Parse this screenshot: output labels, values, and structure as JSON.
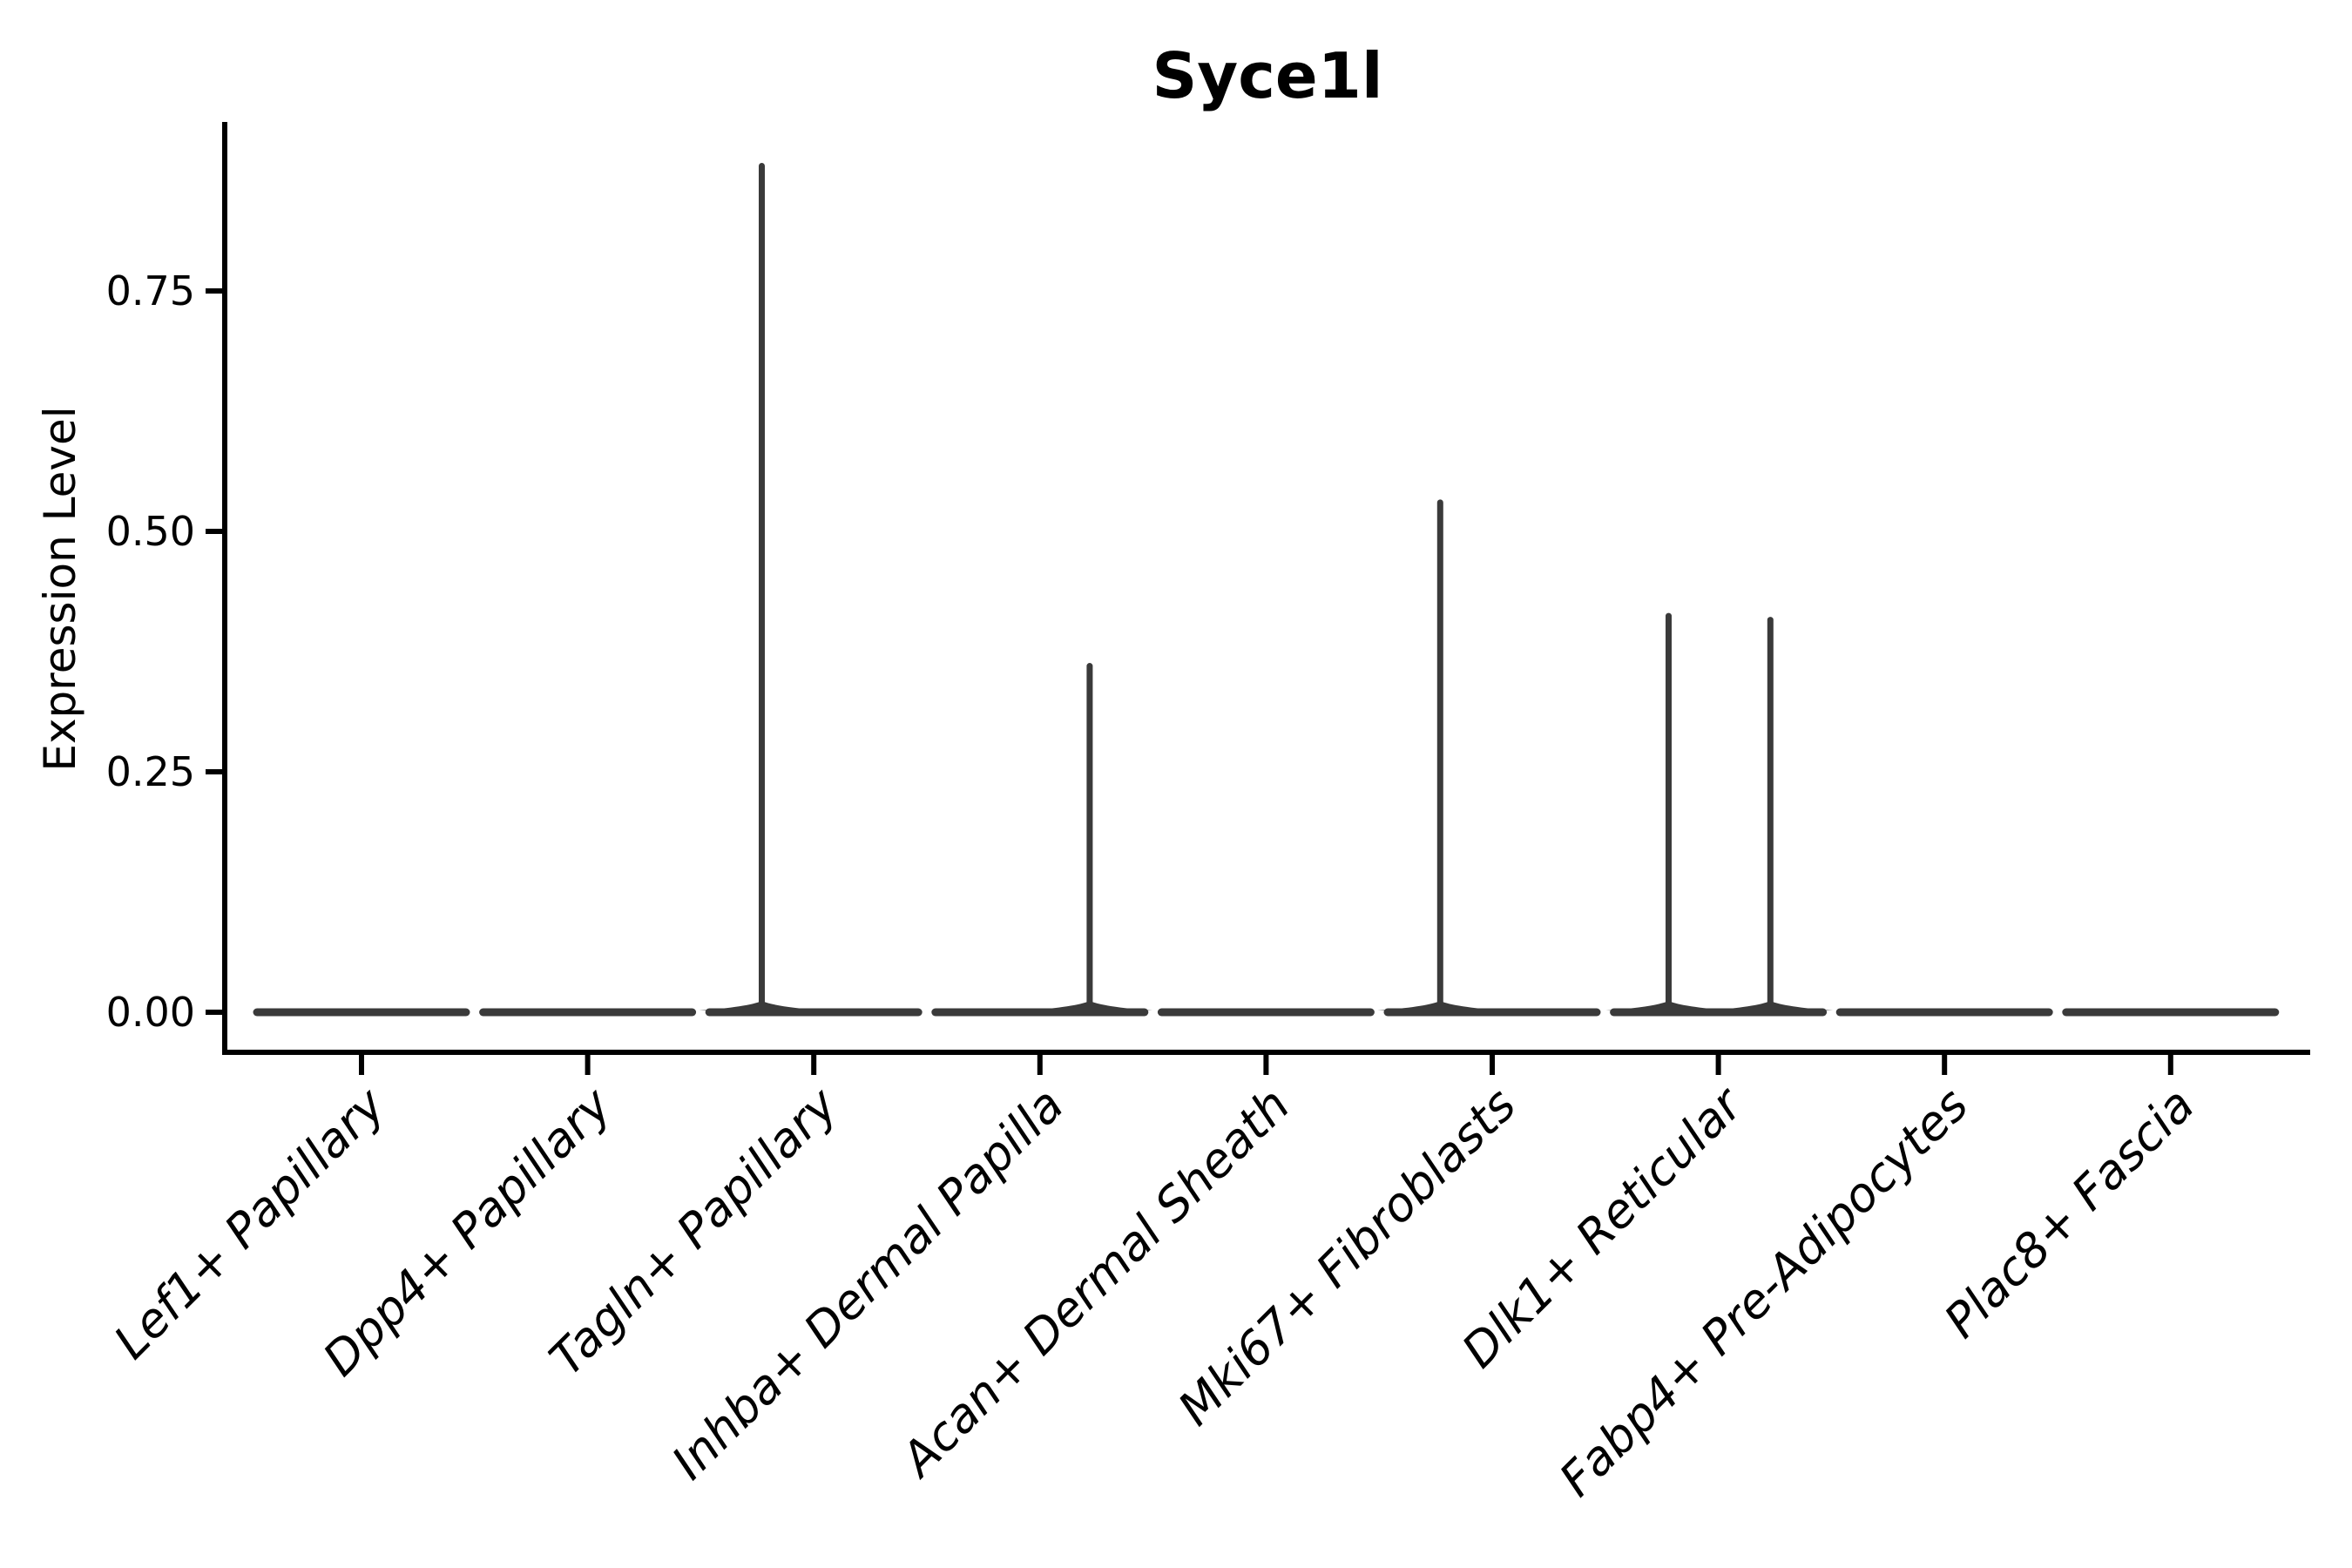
{
  "figure": {
    "title": "Syce1l",
    "ylabel": "Expression Level"
  },
  "chart_data": {
    "type": "violin",
    "title": "Syce1l",
    "xlabel": "",
    "ylabel": "Expression Level",
    "grid": false,
    "legend": false,
    "background": "#ffffff",
    "categories": [
      "Lef1+ Papillary",
      "Dpp4+ Papillary",
      "Tagln+ Papillary",
      "Inhba+ Dermal Papilla",
      "Acan+ Dermal Sheath",
      "Mki67+ Fibroblasts",
      "Dlk1+ Reticular",
      "Fabp4+ Pre-Adipocytes",
      "Plac8+ Fascia"
    ],
    "y_ticks": [
      "0.00",
      "0.25",
      "0.50",
      "0.75"
    ],
    "y_tick_values": [
      0,
      0.25,
      0.5,
      0.75
    ],
    "ylim": [
      0,
      0.93
    ],
    "violins": [
      {
        "category": "Lef1+ Papillary",
        "all_zero": true,
        "max": 0,
        "spikes": []
      },
      {
        "category": "Dpp4+ Papillary",
        "all_zero": true,
        "max": 0,
        "spikes": []
      },
      {
        "category": "Tagln+ Papillary",
        "all_zero": false,
        "max": 0.88,
        "spikes": [
          {
            "x_offset": -0.23,
            "value": 0.88
          }
        ]
      },
      {
        "category": "Inhba+ Dermal Papilla",
        "all_zero": false,
        "max": 0.36,
        "spikes": [
          {
            "x_offset": 0.22,
            "value": 0.36
          }
        ]
      },
      {
        "category": "Acan+ Dermal Sheath",
        "all_zero": true,
        "max": 0,
        "spikes": []
      },
      {
        "category": "Mki67+ Fibroblasts",
        "all_zero": false,
        "max": 0.53,
        "spikes": [
          {
            "x_offset": -0.23,
            "value": 0.53
          }
        ]
      },
      {
        "category": "Dlk1+ Reticular",
        "all_zero": false,
        "max": 0.41,
        "spikes": [
          {
            "x_offset": -0.22,
            "value": 0.412
          },
          {
            "x_offset": 0.23,
            "value": 0.408
          }
        ]
      },
      {
        "category": "Fabp4+ Pre-Adipocytes",
        "all_zero": true,
        "max": 0,
        "spikes": []
      },
      {
        "category": "Plac8+ Fascia",
        "all_zero": true,
        "max": 0,
        "spikes": []
      }
    ],
    "colors": {
      "violin": "#3a3a3a",
      "axis": "#000000",
      "text": "#000000",
      "background": "#ffffff"
    }
  }
}
